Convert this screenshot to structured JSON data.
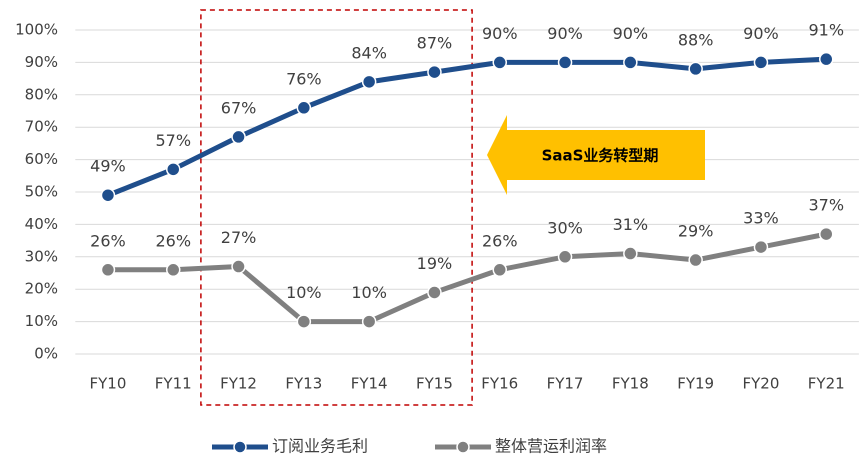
{
  "chart_data": {
    "type": "line",
    "categories": [
      "FY10",
      "FY11",
      "FY12",
      "FY13",
      "FY14",
      "FY15",
      "FY16",
      "FY17",
      "FY18",
      "FY19",
      "FY20",
      "FY21"
    ],
    "series": [
      {
        "name": "订阅业务毛利",
        "color": "#1f4e8c",
        "values": [
          49,
          57,
          67,
          76,
          84,
          87,
          90,
          90,
          90,
          88,
          90,
          91
        ],
        "value_labels": [
          "49%",
          "57%",
          "67%",
          "76%",
          "84%",
          "87%",
          "90%",
          "90%",
          "90%",
          "88%",
          "90%",
          "91%"
        ]
      },
      {
        "name": "整体营运利润率",
        "color": "#808080",
        "values": [
          26,
          26,
          27,
          10,
          10,
          19,
          26,
          30,
          31,
          29,
          33,
          37
        ],
        "value_labels": [
          "26%",
          "26%",
          "27%",
          "10%",
          "10%",
          "19%",
          "26%",
          "30%",
          "31%",
          "29%",
          "33%",
          "37%"
        ]
      }
    ],
    "ylim": [
      0,
      100
    ],
    "yticks": [
      {
        "value": 0,
        "label": "0%"
      },
      {
        "value": 10,
        "label": "10%"
      },
      {
        "value": 20,
        "label": "20%"
      },
      {
        "value": 30,
        "label": "30%"
      },
      {
        "value": 40,
        "label": "40%"
      },
      {
        "value": 50,
        "label": "50%"
      },
      {
        "value": 60,
        "label": "60%"
      },
      {
        "value": 70,
        "label": "70%"
      },
      {
        "value": 80,
        "label": "80%"
      },
      {
        "value": 90,
        "label": "90%"
      },
      {
        "value": 100,
        "label": "100%"
      }
    ],
    "grid": true,
    "annotation": "SaaS业务转型期"
  }
}
